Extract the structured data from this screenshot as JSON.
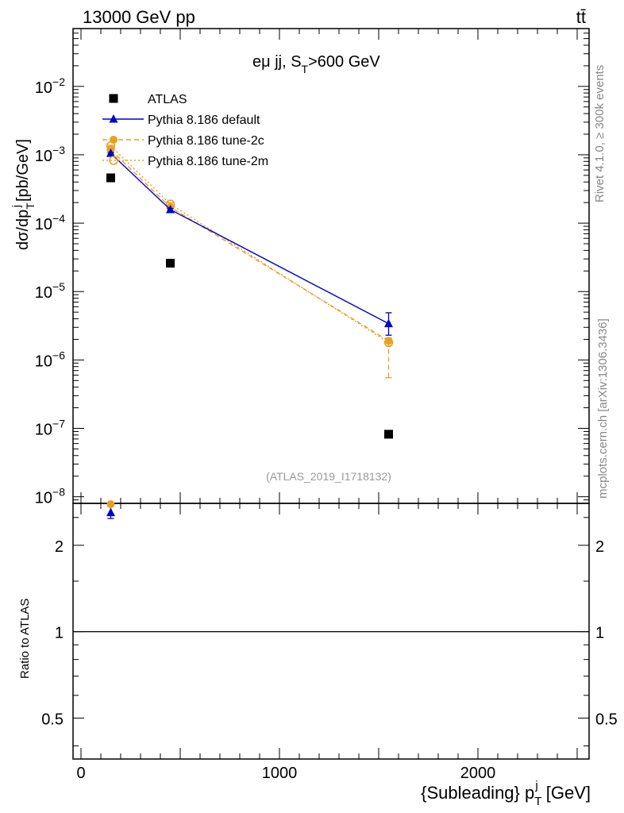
{
  "header": {
    "left": "13000 GeV pp",
    "right": "tt̄"
  },
  "plot_label": "eμ jj, S",
  "plot_label_sub": "T",
  "plot_label_tail": ">600 GeV",
  "analysis_id": "(ATLAS_2019_I1718132)",
  "side_right_top": "Rivet 4.1.0, ≥ 300k events",
  "side_right_bottom": "mcplots.cern.ch [arXiv:1306.3436]",
  "y_label_main": "dσ/dp",
  "y_label_main_sub": "T",
  "y_label_main_sup": "j",
  "y_label_main_units": "[pb/GeV]",
  "y_label_ratio": "Ratio to ATLAS",
  "x_label": "{Subleading} p",
  "x_label_sub": "T",
  "x_label_sup": "j",
  "x_label_units": "[GeV]",
  "chart_data": [
    {
      "type": "scatter",
      "panel": "main",
      "yscale": "log",
      "xlim": [
        -40,
        2560
      ],
      "ylim": [
        8e-09,
        0.07
      ],
      "yticks": [
        {
          "value": 1e-08,
          "label": "10",
          "exp": "−8"
        },
        {
          "value": 1e-07,
          "label": "10",
          "exp": "−7"
        },
        {
          "value": 1e-06,
          "label": "10",
          "exp": "−6"
        },
        {
          "value": 1e-05,
          "label": "10",
          "exp": "−5"
        },
        {
          "value": 0.0001,
          "label": "10",
          "exp": "−4"
        },
        {
          "value": 0.001,
          "label": "10",
          "exp": "−3"
        },
        {
          "value": 0.01,
          "label": "10",
          "exp": "−2"
        }
      ],
      "series": [
        {
          "name": "ATLAS",
          "color": "#000000",
          "marker": "square",
          "line": "none",
          "x": [
            150,
            450,
            1550
          ],
          "y": [
            0.00046,
            2.6e-05,
            8.2e-08
          ],
          "err_lo": [
            0,
            0,
            0
          ],
          "err_hi": [
            0,
            0,
            0
          ]
        },
        {
          "name": "Pythia 8.186 default",
          "color": "#0000cc",
          "marker": "triangle",
          "line": "solid",
          "x": [
            150,
            450,
            1550
          ],
          "y": [
            0.00105,
            0.000158,
            3.4e-06
          ],
          "err_lo": [
            3e-05,
            6e-06,
            1.1e-06
          ],
          "err_hi": [
            3e-05,
            6e-06,
            1.5e-06
          ]
        },
        {
          "name": "Pythia 8.186 tune-2c",
          "color": "#e8a020",
          "marker": "circle",
          "line": "dashed",
          "x": [
            150,
            450,
            1550
          ],
          "y": [
            0.00118,
            0.000172,
            1.9e-06
          ],
          "err_lo": [
            3e-05,
            7e-06,
            1.35e-06
          ],
          "err_hi": [
            3e-05,
            7e-06,
            2e-07
          ]
        },
        {
          "name": "Pythia 8.186 tune-2m",
          "color": "#e8a020",
          "marker": "open-circle",
          "line": "dotted",
          "x": [
            150,
            450,
            1550
          ],
          "y": [
            0.00135,
            0.00019,
            1.8e-06
          ],
          "err_lo": [
            3e-05,
            8e-06,
            2e-07
          ],
          "err_hi": [
            3e-05,
            8e-06,
            2e-07
          ]
        }
      ]
    },
    {
      "type": "scatter",
      "panel": "ratio",
      "yscale": "log",
      "xlim": [
        -40,
        2560
      ],
      "ylim": [
        0.36,
        2.8
      ],
      "xticks": [
        0,
        1000,
        2000
      ],
      "xticklabels": [
        "0",
        "1000",
        "2000"
      ],
      "yticks": [
        0.5,
        1,
        2
      ],
      "yticklabels": [
        "0.5",
        "1",
        "2"
      ],
      "reference_line": 1,
      "series": [
        {
          "name": "Pythia 8.186 default",
          "color": "#0000cc",
          "marker": "triangle",
          "x": [
            150
          ],
          "y": [
            2.6
          ],
          "err_lo": [
            0.12
          ],
          "err_hi": [
            0.12
          ]
        },
        {
          "name": "Pythia 8.186 tune-2c",
          "color": "#e8a020",
          "marker": "circle",
          "x": [
            150
          ],
          "y": [
            2.78
          ],
          "err_lo": [
            0.05
          ],
          "err_hi": [
            0.05
          ]
        }
      ]
    }
  ]
}
